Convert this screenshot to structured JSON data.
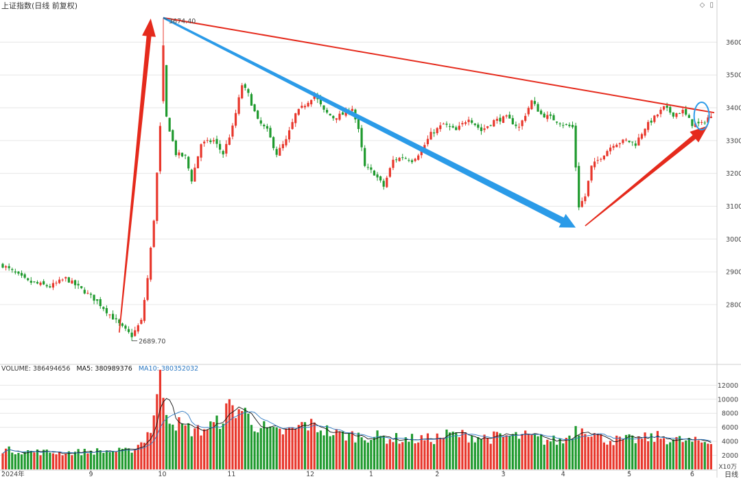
{
  "header": {
    "title": "上证指数(日线 前复权)"
  },
  "volume_header": {
    "volume": "VOLUME: 386494656",
    "ma5": "MA5: 380989376",
    "ma10": "MA10: 380352032"
  },
  "units": {
    "volume_unit": "X10万",
    "period": "日线"
  },
  "annotations": {
    "high_label": "3674.40",
    "low_label": "2689.70"
  },
  "colors": {
    "up": "#e8372c",
    "down": "#1f9a2e",
    "ma5": "#111111",
    "ma10": "#2b78c2",
    "trend_red": "#e52a1c",
    "trend_blue": "#2b9be8",
    "grid": "#e6e6e6"
  },
  "chart_data": [
    {
      "type": "candlestick",
      "title": "上证指数(日线 前复权)",
      "y_ticks": [
        2800,
        2900,
        3000,
        3100,
        3200,
        3300,
        3400,
        3500,
        3600
      ],
      "ylim": [
        2620,
        3720
      ],
      "x_ticks": [
        "2024年",
        "9",
        "10",
        "11",
        "12",
        "1",
        "2",
        "3",
        "4",
        "5",
        "6"
      ],
      "high": 3674.4,
      "low": 2689.7,
      "close_path": [
        {
          "i": 0,
          "v": 2920
        },
        {
          "i": 8,
          "v": 2870
        },
        {
          "i": 15,
          "v": 2855
        },
        {
          "i": 20,
          "v": 2880
        },
        {
          "i": 26,
          "v": 2840
        },
        {
          "i": 30,
          "v": 2810
        },
        {
          "i": 34,
          "v": 2770
        },
        {
          "i": 38,
          "v": 2730
        },
        {
          "i": 41,
          "v": 2705
        },
        {
          "i": 44,
          "v": 2750
        },
        {
          "i": 46,
          "v": 2880
        },
        {
          "i": 48,
          "v": 3060
        },
        {
          "i": 50,
          "v": 3340
        },
        {
          "i": 51,
          "v": 3600
        },
        {
          "i": 52,
          "v": 3370
        },
        {
          "i": 55,
          "v": 3260
        },
        {
          "i": 58,
          "v": 3250
        },
        {
          "i": 60,
          "v": 3180
        },
        {
          "i": 63,
          "v": 3290
        },
        {
          "i": 67,
          "v": 3300
        },
        {
          "i": 70,
          "v": 3260
        },
        {
          "i": 73,
          "v": 3340
        },
        {
          "i": 76,
          "v": 3470
        },
        {
          "i": 78,
          "v": 3440
        },
        {
          "i": 81,
          "v": 3360
        },
        {
          "i": 84,
          "v": 3330
        },
        {
          "i": 87,
          "v": 3260
        },
        {
          "i": 90,
          "v": 3300
        },
        {
          "i": 93,
          "v": 3380
        },
        {
          "i": 96,
          "v": 3410
        },
        {
          "i": 99,
          "v": 3440
        },
        {
          "i": 102,
          "v": 3390
        },
        {
          "i": 105,
          "v": 3370
        },
        {
          "i": 108,
          "v": 3380
        },
        {
          "i": 111,
          "v": 3400
        },
        {
          "i": 113,
          "v": 3330
        },
        {
          "i": 115,
          "v": 3220
        },
        {
          "i": 118,
          "v": 3200
        },
        {
          "i": 121,
          "v": 3160
        },
        {
          "i": 124,
          "v": 3240
        },
        {
          "i": 127,
          "v": 3250
        },
        {
          "i": 130,
          "v": 3240
        },
        {
          "i": 133,
          "v": 3270
        },
        {
          "i": 136,
          "v": 3320
        },
        {
          "i": 140,
          "v": 3350
        },
        {
          "i": 144,
          "v": 3330
        },
        {
          "i": 148,
          "v": 3370
        },
        {
          "i": 152,
          "v": 3330
        },
        {
          "i": 156,
          "v": 3360
        },
        {
          "i": 160,
          "v": 3370
        },
        {
          "i": 164,
          "v": 3340
        },
        {
          "i": 168,
          "v": 3420
        },
        {
          "i": 171,
          "v": 3380
        },
        {
          "i": 174,
          "v": 3370
        },
        {
          "i": 178,
          "v": 3350
        },
        {
          "i": 181,
          "v": 3340
        },
        {
          "i": 183,
          "v": 3100
        },
        {
          "i": 185,
          "v": 3130
        },
        {
          "i": 187,
          "v": 3220
        },
        {
          "i": 190,
          "v": 3250
        },
        {
          "i": 194,
          "v": 3290
        },
        {
          "i": 198,
          "v": 3300
        },
        {
          "i": 201,
          "v": 3290
        },
        {
          "i": 204,
          "v": 3340
        },
        {
          "i": 207,
          "v": 3370
        },
        {
          "i": 210,
          "v": 3400
        },
        {
          "i": 213,
          "v": 3380
        },
        {
          "i": 216,
          "v": 3390
        },
        {
          "i": 219,
          "v": 3350
        },
        {
          "i": 222,
          "v": 3350
        },
        {
          "i": 224,
          "v": 3370
        }
      ],
      "trend_lines": [
        {
          "name": "red-resistance",
          "from": {
            "i": 51,
            "v": 3674.4
          },
          "to": {
            "i": 226,
            "v": 3385
          }
        },
        {
          "name": "blue-down",
          "from": {
            "i": 51,
            "v": 3674.4
          },
          "to": {
            "i": 182,
            "v": 3035
          }
        }
      ],
      "arrows": [
        {
          "name": "red-up-1",
          "from": {
            "i": 37,
            "v": 2715
          },
          "to": {
            "i": 47,
            "v": 3672
          }
        },
        {
          "name": "red-up-2",
          "from": {
            "i": 185,
            "v": 3040
          },
          "to": {
            "i": 224,
            "v": 3345
          }
        }
      ],
      "highlight": {
        "i": 222,
        "v": 3375
      }
    },
    {
      "type": "bar",
      "title": "VOLUME",
      "y_ticks": [
        2000,
        4000,
        6000,
        8000,
        10000,
        12000
      ],
      "ylim": [
        0,
        13500
      ],
      "volume_path": [
        {
          "i": 0,
          "v": 2800
        },
        {
          "i": 10,
          "v": 2500
        },
        {
          "i": 20,
          "v": 2400
        },
        {
          "i": 30,
          "v": 2600
        },
        {
          "i": 40,
          "v": 2600
        },
        {
          "i": 44,
          "v": 3800
        },
        {
          "i": 47,
          "v": 5800
        },
        {
          "i": 50,
          "v": 12500
        },
        {
          "i": 53,
          "v": 7500
        },
        {
          "i": 57,
          "v": 6000
        },
        {
          "i": 62,
          "v": 5500
        },
        {
          "i": 68,
          "v": 6500
        },
        {
          "i": 72,
          "v": 8800
        },
        {
          "i": 76,
          "v": 8500
        },
        {
          "i": 80,
          "v": 6500
        },
        {
          "i": 86,
          "v": 5200
        },
        {
          "i": 92,
          "v": 5500
        },
        {
          "i": 96,
          "v": 6500
        },
        {
          "i": 100,
          "v": 6000
        },
        {
          "i": 106,
          "v": 5000
        },
        {
          "i": 112,
          "v": 4800
        },
        {
          "i": 118,
          "v": 4700
        },
        {
          "i": 124,
          "v": 4400
        },
        {
          "i": 130,
          "v": 4300
        },
        {
          "i": 136,
          "v": 4300
        },
        {
          "i": 142,
          "v": 5000
        },
        {
          "i": 148,
          "v": 4800
        },
        {
          "i": 154,
          "v": 4500
        },
        {
          "i": 160,
          "v": 4700
        },
        {
          "i": 166,
          "v": 4700
        },
        {
          "i": 172,
          "v": 4200
        },
        {
          "i": 178,
          "v": 4000
        },
        {
          "i": 182,
          "v": 5800
        },
        {
          "i": 185,
          "v": 6000
        },
        {
          "i": 190,
          "v": 4400
        },
        {
          "i": 196,
          "v": 4100
        },
        {
          "i": 202,
          "v": 4300
        },
        {
          "i": 208,
          "v": 4600
        },
        {
          "i": 214,
          "v": 4200
        },
        {
          "i": 220,
          "v": 3900
        },
        {
          "i": 224,
          "v": 3900
        }
      ]
    }
  ]
}
